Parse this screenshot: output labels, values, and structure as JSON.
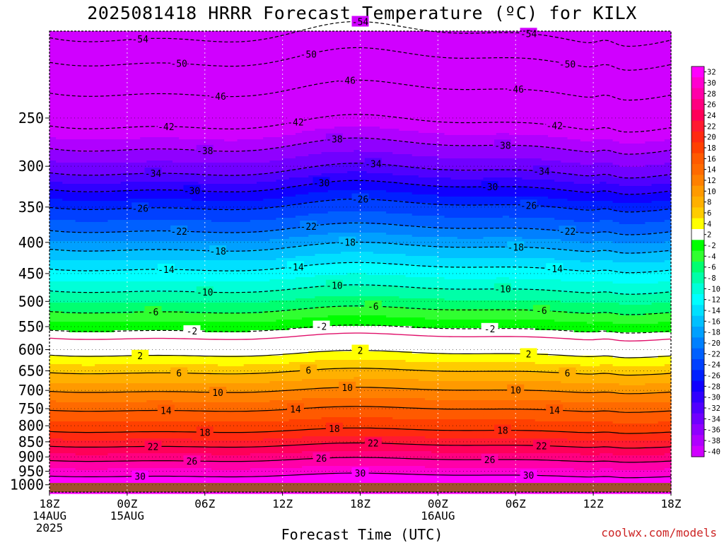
{
  "title": "2025081418 HRRR Forecast Temperature (ºC) for KILX",
  "credit": "coolwx.com/models",
  "chart_data": {
    "type": "heatmap",
    "title": "2025081418 HRRR Forecast Temperature (ºC) for KILX",
    "xlabel": "Forecast Time (UTC)",
    "ylabel": "",
    "x_range_hours": [
      0,
      48
    ],
    "x_ticks": [
      {
        "hour": 0,
        "lines": [
          "18Z",
          "14AUG",
          "2025"
        ]
      },
      {
        "hour": 6,
        "lines": [
          "00Z",
          "15AUG"
        ]
      },
      {
        "hour": 12,
        "lines": [
          "06Z"
        ]
      },
      {
        "hour": 18,
        "lines": [
          "12Z"
        ]
      },
      {
        "hour": 24,
        "lines": [
          "18Z"
        ]
      },
      {
        "hour": 30,
        "lines": [
          "00Z",
          "16AUG"
        ]
      },
      {
        "hour": 36,
        "lines": [
          "06Z"
        ]
      },
      {
        "hour": 42,
        "lines": [
          "12Z"
        ]
      },
      {
        "hour": 48,
        "lines": [
          "18Z"
        ]
      }
    ],
    "y_axis": "pressure_hPa",
    "y_ticks": [
      250,
      300,
      350,
      400,
      450,
      500,
      550,
      600,
      650,
      700,
      750,
      800,
      850,
      900,
      950,
      1000
    ],
    "surface_pressure": 993,
    "colorbar": {
      "labels": [
        "32",
        "30",
        "28",
        "26",
        "24",
        "22",
        "20",
        "18",
        "16",
        "14",
        "12",
        "10",
        "8",
        "6",
        "4",
        "2",
        "-2",
        "-4",
        "-6",
        "-8",
        "-10",
        "-12",
        "-14",
        "-16",
        "-18",
        "-20",
        "-22",
        "-24",
        "-26",
        "-28",
        "-30",
        "-32",
        "-34",
        "-36",
        "-38",
        "-40"
      ],
      "colors": [
        "#ff00ff",
        "#ff00d0",
        "#ff00a8",
        "#ff0080",
        "#ff0058",
        "#ff1a30",
        "#ff2a10",
        "#ff4000",
        "#ff5a00",
        "#ff6a00",
        "#ff8000",
        "#ff9a00",
        "#ffb000",
        "#ffcc00",
        "#ffff00",
        "#ffffff",
        "#00ff00",
        "#30ff30",
        "#00ff70",
        "#00ffa8",
        "#00ffd8",
        "#00ffff",
        "#00e0ff",
        "#00c0ff",
        "#00a0ff",
        "#0080ff",
        "#0060ff",
        "#0040ff",
        "#0020ff",
        "#1000ff",
        "#3000ff",
        "#5000ff",
        "#7000ff",
        "#9000ff",
        "#b000ff",
        "#d000ff"
      ]
    },
    "isotherms_dashed": [
      {
        "label": "-54",
        "p": 182
      },
      {
        "label": "-50",
        "p": 200
      },
      {
        "label": "-46",
        "p": 225
      },
      {
        "label": "-42",
        "p": 255
      },
      {
        "label": "-38",
        "p": 278
      },
      {
        "label": "-34",
        "p": 305
      },
      {
        "label": "-30",
        "p": 325
      },
      {
        "label": "-26",
        "p": 348
      },
      {
        "label": "-22",
        "p": 380
      },
      {
        "label": "-18",
        "p": 408
      },
      {
        "label": "-14",
        "p": 440
      },
      {
        "label": "-10",
        "p": 478
      },
      {
        "label": "-6",
        "p": 517
      },
      {
        "label": "-2",
        "p": 555
      }
    ],
    "isotherms_solid": [
      {
        "label": "2",
        "p": 610
      },
      {
        "label": "6",
        "p": 652
      },
      {
        "label": "10",
        "p": 700
      },
      {
        "label": "14",
        "p": 752
      },
      {
        "label": "18",
        "p": 815
      },
      {
        "label": "22",
        "p": 862
      },
      {
        "label": "26",
        "p": 910
      },
      {
        "label": "30",
        "p": 965
      }
    ],
    "freezing_level_p": 572
  }
}
